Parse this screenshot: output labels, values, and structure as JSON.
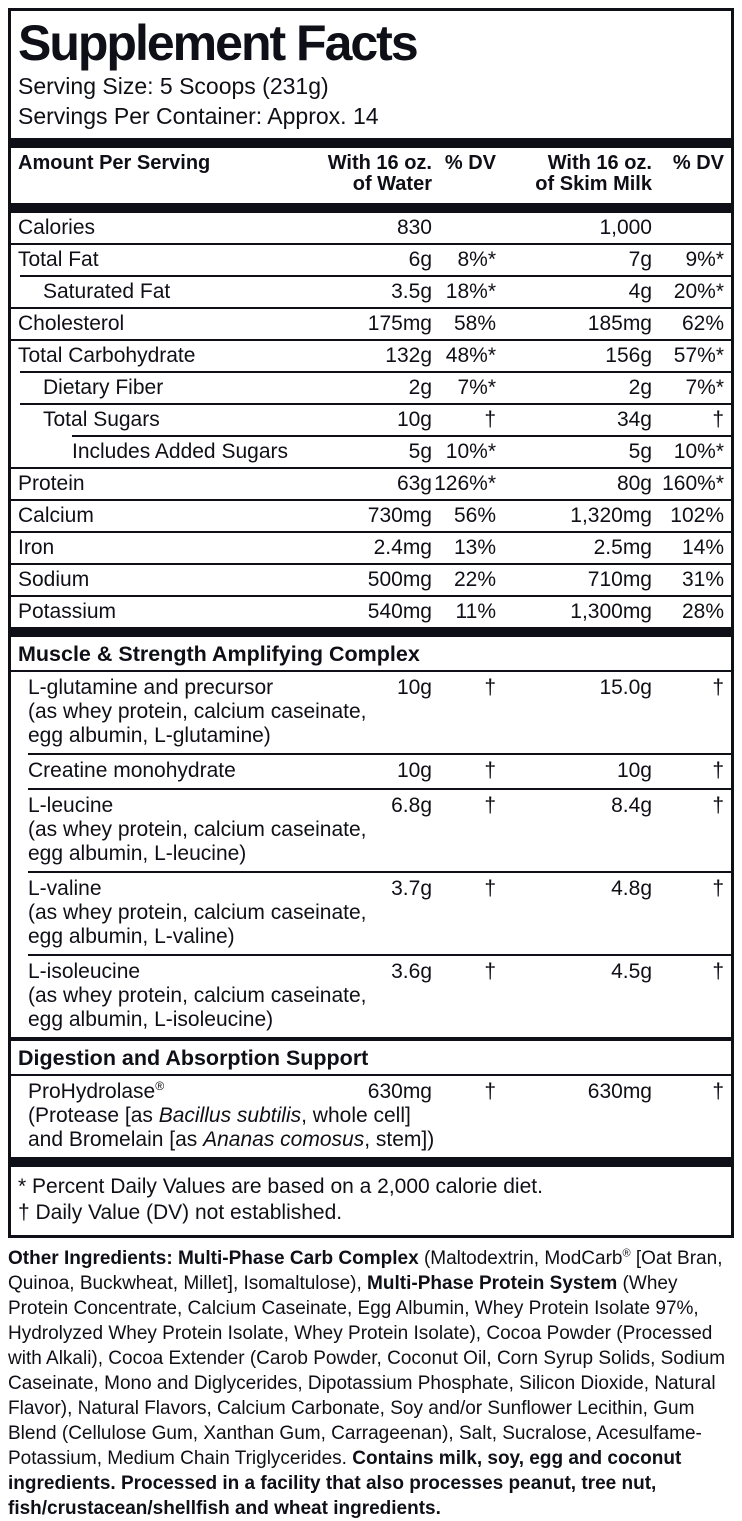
{
  "colors": {
    "ink": "#0f0f17",
    "paper": "#ffffff"
  },
  "label": {
    "title": "Supplement Facts",
    "serving_size": "Serving Size: 5 Scoops (231g)",
    "servings_per_container": "Servings Per Container: Approx. 14"
  },
  "table": {
    "header": {
      "amount": "Amount Per Serving",
      "water": "With 16 oz.\nof Water",
      "dv_water": "% DV",
      "milk": "With 16 oz.\nof Skim Milk",
      "dv_milk": "% DV"
    },
    "main_rows": [
      {
        "name": "Calories",
        "water": "830",
        "water_dv": "",
        "milk": "1,000",
        "milk_dv": ""
      },
      {
        "name": "Total Fat",
        "water": "6g",
        "water_dv": "8%*",
        "milk": "7g",
        "milk_dv": "9%*"
      },
      {
        "name": "Saturated Fat",
        "water": "3.5g",
        "water_dv": "18%*",
        "milk": "4g",
        "milk_dv": "20%*"
      },
      {
        "name": "Cholesterol",
        "water": "175mg",
        "water_dv": "58%",
        "milk": "185mg",
        "milk_dv": "62%"
      },
      {
        "name": "Total Carbohydrate",
        "water": "132g",
        "water_dv": "48%*",
        "milk": "156g",
        "milk_dv": "57%*"
      },
      {
        "name": "Dietary Fiber",
        "water": "2g",
        "water_dv": "7%*",
        "milk": "2g",
        "milk_dv": "7%*"
      },
      {
        "name": "Total Sugars",
        "water": "10g",
        "water_dv": "†",
        "milk": "34g",
        "milk_dv": "†"
      },
      {
        "name": "Includes Added Sugars",
        "water": "5g",
        "water_dv": "10%*",
        "milk": "5g",
        "milk_dv": "10%*"
      },
      {
        "name": "Protein",
        "water": "63g",
        "water_dv": "126%*",
        "milk": "80g",
        "milk_dv": "160%*"
      },
      {
        "name": "Calcium",
        "water": "730mg",
        "water_dv": "56%",
        "milk": "1,320mg",
        "milk_dv": "102%"
      },
      {
        "name": "Iron",
        "water": "2.4mg",
        "water_dv": "13%",
        "milk": "2.5mg",
        "milk_dv": "14%"
      },
      {
        "name": "Sodium",
        "water": "500mg",
        "water_dv": "22%",
        "milk": "710mg",
        "milk_dv": "31%"
      },
      {
        "name": "Potassium",
        "water": "540mg",
        "water_dv": "11%",
        "milk": "1,300mg",
        "milk_dv": "28%"
      }
    ],
    "muscle_section": {
      "title": "Muscle & Strength Amplifying Complex",
      "rows": [
        {
          "name": "L-glutamine and precursor",
          "water": "10g",
          "water_dv": "†",
          "milk": "15.0g",
          "milk_dv": "†",
          "sub1": "(as whey protein, calcium caseinate,",
          "sub2": "egg albumin, L-glutamine)"
        },
        {
          "name": "Creatine monohydrate",
          "water": "10g",
          "water_dv": "†",
          "milk": "10g",
          "milk_dv": "†"
        },
        {
          "name": "L-leucine",
          "water": "6.8g",
          "water_dv": "†",
          "milk": "8.4g",
          "milk_dv": "†",
          "sub1": "(as whey protein, calcium caseinate,",
          "sub2": "egg albumin, L-leucine)"
        },
        {
          "name": "L-valine",
          "water": "3.7g",
          "water_dv": "†",
          "milk": "4.8g",
          "milk_dv": "†",
          "sub1": "(as whey protein, calcium caseinate,",
          "sub2": "egg albumin, L-valine)"
        },
        {
          "name": "L-isoleucine",
          "water": "3.6g",
          "water_dv": "†",
          "milk": "4.5g",
          "milk_dv": "†",
          "sub1": "(as whey protein, calcium caseinate,",
          "sub2": "egg albumin, L-isoleucine)"
        }
      ]
    },
    "digestion_section": {
      "title": "Digestion and Absorption Support",
      "row": {
        "name": "ProHydrolase",
        "reg": "®",
        "water": "630mg",
        "water_dv": "†",
        "milk": "630mg",
        "milk_dv": "†",
        "sub1_segments": [
          {
            "t": "(Protease [as "
          },
          {
            "t": "Bacillus subtilis",
            "i": 1
          },
          {
            "t": ", whole cell]"
          }
        ],
        "sub2_segments": [
          {
            "t": "and Bromelain [as "
          },
          {
            "t": "Ananas comosus",
            "i": 1
          },
          {
            "t": ", stem])"
          }
        ]
      }
    },
    "footnotes": {
      "percent_dv": "* Percent Daily Values are based on a 2,000 calorie diet.",
      "dagger": "† Daily Value (DV) not established."
    }
  },
  "other_ingredients_segments": [
    {
      "t": "Other Ingredients: Multi-Phase Carb Complex",
      "b": 1
    },
    {
      "t": " (Maltodextrin, ModCarb"
    },
    {
      "t": "®",
      "sup": 1
    },
    {
      "t": " [Oat Bran, Quinoa, Buckwheat, Millet], Isomaltulose), "
    },
    {
      "t": "Multi-Phase Protein System",
      "b": 1
    },
    {
      "t": " (Whey Protein Concentrate, Calcium Caseinate, Egg Albumin, Whey Protein Isolate 97%, Hydrolyzed Whey Protein Isolate, Whey Protein Isolate), Cocoa Powder (Processed with Alkali), Cocoa Extender (Carob Powder, Coconut Oil, Corn Syrup Solids, Sodium Caseinate, Mono and Diglycerides, Dipotassium Phosphate, Silicon Dioxide, Natural Flavor), Natural Flavors, Calcium Carbonate, Soy and/or Sunflower Lecithin, Gum Blend (Cellulose Gum, Xanthan Gum, Carrageenan), Salt, Sucralose, Acesulfame-Potassium, Medium Chain Triglycerides. "
    },
    {
      "t": "Contains milk, soy, egg and coconut ingredients. Processed in a facility that also processes peanut, tree nut, fish/crustacean/shellfish and wheat ingredients.",
      "b": 1
    }
  ]
}
